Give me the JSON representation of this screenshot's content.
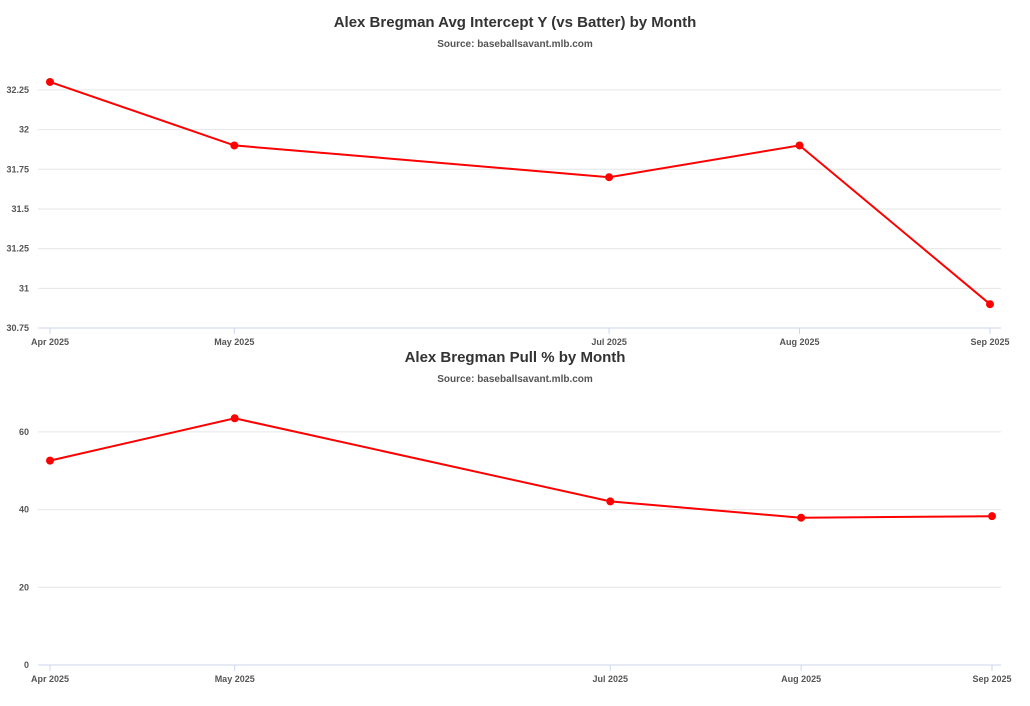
{
  "chart_data": [
    {
      "type": "line",
      "title": "Alex Bregman Avg Intercept Y (vs Batter) by Month",
      "subtitle": "Source: baseballsavant.mlb.com",
      "xlabel": "",
      "ylabel": "",
      "x": [
        "2025-04-01",
        "2025-05-01",
        "2025-07-01",
        "2025-08-01",
        "2025-09-01"
      ],
      "x_tick_labels": [
        "Apr 2025",
        "May 2025",
        "Jul 2025",
        "Aug 2025",
        "Sep 2025"
      ],
      "series": [
        {
          "values": [
            32.3,
            31.9,
            31.7,
            31.9,
            30.9
          ],
          "color": "#ff0000"
        }
      ],
      "ylim": [
        30.75,
        32.35
      ],
      "y_ticks": [
        30.75,
        31,
        31.25,
        31.5,
        31.75,
        32,
        32.25
      ],
      "y_tick_labels": [
        "30.75",
        "31",
        "31.25",
        "31.5",
        "31.75",
        "32",
        "32.25"
      ],
      "grid": true,
      "legend": "none"
    },
    {
      "type": "line",
      "title": "Alex Bregman Pull % by Month",
      "subtitle": "Source: baseballsavant.mlb.com",
      "xlabel": "",
      "ylabel": "",
      "x": [
        "2025-04-01",
        "2025-05-01",
        "2025-07-01",
        "2025-08-01",
        "2025-09-01"
      ],
      "x_tick_labels": [
        "Apr 2025",
        "May 2025",
        "Jul 2025",
        "Aug 2025",
        "Sep 2025"
      ],
      "series": [
        {
          "values": [
            52.6,
            63.5,
            42.1,
            37.9,
            38.3
          ],
          "color": "#ff0000"
        }
      ],
      "ylim": [
        0,
        70
      ],
      "y_ticks": [
        0,
        20,
        40,
        60
      ],
      "y_tick_labels": [
        "0",
        "20",
        "40",
        "60"
      ],
      "grid": true,
      "legend": "none"
    }
  ]
}
